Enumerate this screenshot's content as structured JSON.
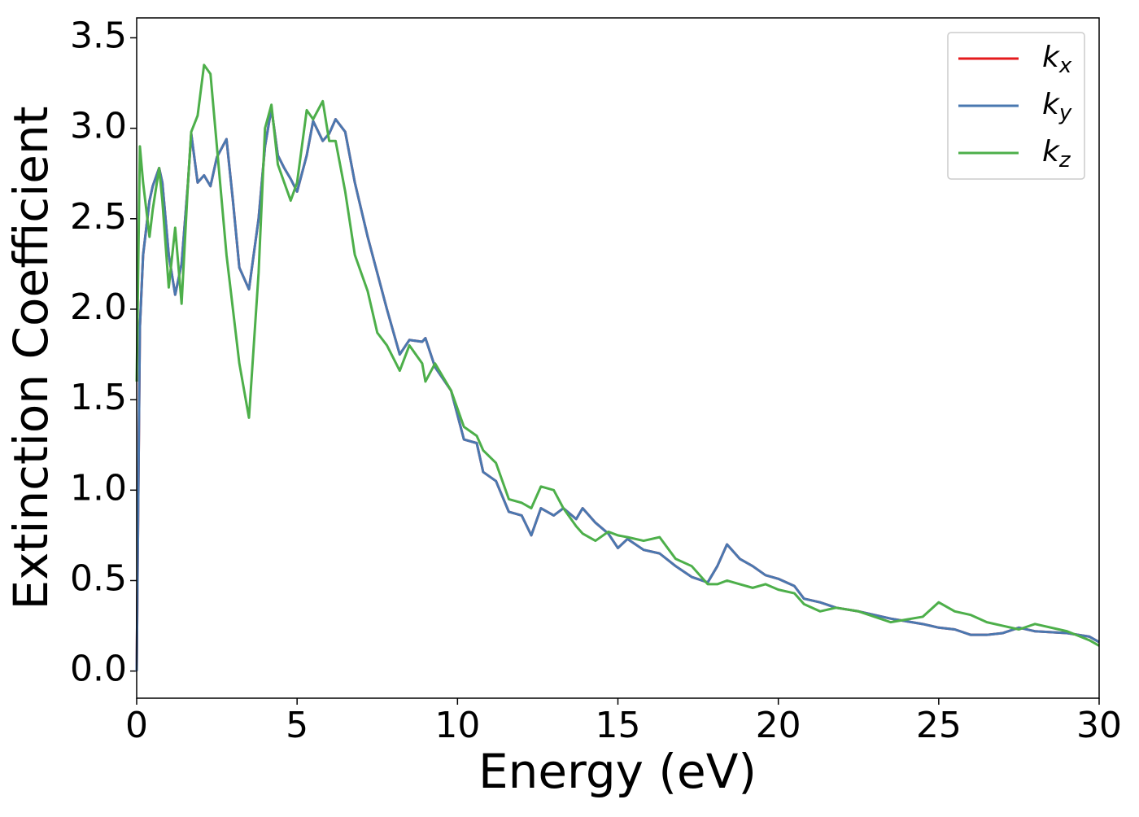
{
  "chart_data": {
    "type": "line",
    "xlabel": "Energy (eV)",
    "ylabel": "Extinction Coefficient",
    "xlim": [
      0,
      30
    ],
    "ylim": [
      -0.15,
      3.61
    ],
    "xticks": [
      0,
      5,
      10,
      15,
      20,
      25,
      30
    ],
    "yticks": [
      {
        "value": 0,
        "label": "0.0"
      },
      0.5,
      {
        "value": 1,
        "label": "1.0"
      },
      1.5,
      {
        "value": 2,
        "label": "2.0"
      },
      2.5,
      {
        "value": 3,
        "label": "3.0"
      },
      3.5
    ],
    "legend": "upper right",
    "x": [
      0,
      0.1,
      0.2,
      0.4,
      0.5,
      0.7,
      0.8,
      1.0,
      1.2,
      1.4,
      1.6,
      1.7,
      1.9,
      2.1,
      2.3,
      2.5,
      2.8,
      3.0,
      3.2,
      3.5,
      3.8,
      4.0,
      4.2,
      4.4,
      4.6,
      4.8,
      5.0,
      5.3,
      5.5,
      5.8,
      6.0,
      6.2,
      6.5,
      6.8,
      7.2,
      7.5,
      7.8,
      8.2,
      8.5,
      8.9,
      9.0,
      9.3,
      9.8,
      10.2,
      10.6,
      10.8,
      11.2,
      11.6,
      12.0,
      12.3,
      12.6,
      13.0,
      13.3,
      13.7,
      13.9,
      14.3,
      14.7,
      15.0,
      15.3,
      15.8,
      16.3,
      16.8,
      17.3,
      17.8,
      18.1,
      18.4,
      18.8,
      19.2,
      19.6,
      20.0,
      20.5,
      20.8,
      21.3,
      21.8,
      22.5,
      23.5,
      24.5,
      25.0,
      25.5,
      26.0,
      26.5,
      27.0,
      27.5,
      28.0,
      29.0,
      29.7,
      30
    ],
    "series": [
      {
        "name": "kx",
        "color": "#e41a1c",
        "values": [
          0,
          1.9,
          2.3,
          2.6,
          2.68,
          2.78,
          2.7,
          2.3,
          2.08,
          2.25,
          2.7,
          2.97,
          2.7,
          2.74,
          2.68,
          2.84,
          2.94,
          2.6,
          2.23,
          2.11,
          2.5,
          2.9,
          3.11,
          2.85,
          2.78,
          2.72,
          2.65,
          2.85,
          3.04,
          2.93,
          2.97,
          3.05,
          2.98,
          2.7,
          2.4,
          2.2,
          2.0,
          1.75,
          1.83,
          1.82,
          1.84,
          1.68,
          1.55,
          1.28,
          1.26,
          1.1,
          1.05,
          0.88,
          0.86,
          0.75,
          0.9,
          0.86,
          0.9,
          0.84,
          0.9,
          0.82,
          0.76,
          0.68,
          0.73,
          0.67,
          0.65,
          0.58,
          0.52,
          0.49,
          0.58,
          0.7,
          0.62,
          0.58,
          0.53,
          0.51,
          0.47,
          0.4,
          0.38,
          0.35,
          0.33,
          0.29,
          0.26,
          0.24,
          0.23,
          0.2,
          0.2,
          0.21,
          0.24,
          0.22,
          0.21,
          0.19,
          0.16
        ]
      },
      {
        "name": "ky",
        "color": "#4a78b0",
        "values": [
          0,
          1.9,
          2.3,
          2.6,
          2.68,
          2.78,
          2.7,
          2.3,
          2.08,
          2.25,
          2.7,
          2.97,
          2.7,
          2.74,
          2.68,
          2.84,
          2.94,
          2.6,
          2.23,
          2.11,
          2.5,
          2.9,
          3.11,
          2.85,
          2.78,
          2.72,
          2.65,
          2.85,
          3.04,
          2.93,
          2.97,
          3.05,
          2.98,
          2.7,
          2.4,
          2.2,
          2.0,
          1.75,
          1.83,
          1.82,
          1.84,
          1.68,
          1.55,
          1.28,
          1.26,
          1.1,
          1.05,
          0.88,
          0.86,
          0.75,
          0.9,
          0.86,
          0.9,
          0.84,
          0.9,
          0.82,
          0.76,
          0.68,
          0.73,
          0.67,
          0.65,
          0.58,
          0.52,
          0.49,
          0.58,
          0.7,
          0.62,
          0.58,
          0.53,
          0.51,
          0.47,
          0.4,
          0.38,
          0.35,
          0.33,
          0.29,
          0.26,
          0.24,
          0.23,
          0.2,
          0.2,
          0.21,
          0.24,
          0.22,
          0.21,
          0.19,
          0.16
        ]
      },
      {
        "name": "kz",
        "color": "#4daf4a",
        "values": [
          1.6,
          2.9,
          2.7,
          2.4,
          2.55,
          2.78,
          2.6,
          2.12,
          2.45,
          2.03,
          2.7,
          2.98,
          3.07,
          3.35,
          3.3,
          2.9,
          2.3,
          2.0,
          1.7,
          1.4,
          2.2,
          3.0,
          3.13,
          2.8,
          2.7,
          2.6,
          2.7,
          3.1,
          3.05,
          3.15,
          2.93,
          2.93,
          2.65,
          2.3,
          2.1,
          1.87,
          1.8,
          1.66,
          1.8,
          1.7,
          1.6,
          1.7,
          1.55,
          1.35,
          1.3,
          1.22,
          1.15,
          0.95,
          0.93,
          0.9,
          1.02,
          1.0,
          0.9,
          0.8,
          0.76,
          0.72,
          0.77,
          0.75,
          0.74,
          0.72,
          0.74,
          0.62,
          0.58,
          0.48,
          0.48,
          0.5,
          0.48,
          0.46,
          0.48,
          0.45,
          0.43,
          0.37,
          0.33,
          0.35,
          0.33,
          0.27,
          0.3,
          0.38,
          0.33,
          0.31,
          0.27,
          0.25,
          0.23,
          0.26,
          0.22,
          0.17,
          0.14
        ]
      }
    ]
  }
}
